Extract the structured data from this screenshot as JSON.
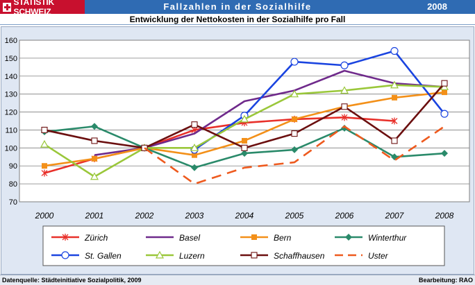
{
  "header": {
    "logo_text": "STATISTIK SCHWEIZ",
    "title": "Fallzahlen in der Sozialhilfe",
    "year": "2008",
    "banner_color": "#2f6bb3",
    "logo_color": "#c8102e"
  },
  "chart_data": {
    "type": "line",
    "title": "Entwicklung der Nettokosten in der Sozialhilfe pro Fall",
    "categories": [
      "2000",
      "2001",
      "2002",
      "2003",
      "2004",
      "2005",
      "2006",
      "2007",
      "2008"
    ],
    "ylim": [
      70,
      160
    ],
    "yticks": [
      70,
      80,
      90,
      100,
      110,
      120,
      130,
      140,
      150,
      160
    ],
    "grid": true,
    "legend_position": "bottom",
    "series": [
      {
        "name": "Zürich",
        "color": "#e8302a",
        "marker": "x",
        "dash": false,
        "values": [
          86,
          94,
          100,
          110,
          114,
          116,
          117,
          115,
          null
        ]
      },
      {
        "name": "Basel",
        "color": "#6f2a8b",
        "marker": "none",
        "dash": false,
        "values": [
          null,
          96,
          100,
          108,
          126,
          132,
          143,
          136,
          134
        ]
      },
      {
        "name": "Bern",
        "color": "#f39019",
        "marker": "square",
        "dash": false,
        "values": [
          90,
          94,
          100,
          96,
          104,
          116,
          123,
          128,
          131
        ]
      },
      {
        "name": "Winterthur",
        "color": "#2a8a6a",
        "marker": "diamond",
        "dash": false,
        "values": [
          109,
          112,
          100,
          89,
          97,
          99,
          111,
          95,
          97
        ]
      },
      {
        "name": "St. Gallen",
        "color": "#1a44e0",
        "marker": "circle",
        "dash": false,
        "values": [
          null,
          null,
          null,
          99,
          118,
          148,
          146,
          154,
          119
        ]
      },
      {
        "name": "Luzern",
        "color": "#9ac73a",
        "marker": "triangle",
        "dash": false,
        "values": [
          102,
          84,
          100,
          100,
          116,
          130,
          132,
          135,
          134
        ]
      },
      {
        "name": "Schaffhausen",
        "color": "#6b0f0f",
        "marker": "square-open",
        "dash": false,
        "values": [
          110,
          104,
          100,
          113,
          100,
          108,
          123,
          104,
          136
        ]
      },
      {
        "name": "Uster",
        "color": "#ee5a1e",
        "marker": "none",
        "dash": true,
        "values": [
          null,
          null,
          100,
          80,
          89,
          92,
          112,
          93,
          112
        ]
      }
    ]
  },
  "footer": {
    "source": "Datenquelle: Städteinitiative Sozialpolitik, 2009",
    "editor": "Bearbeitung: RAO"
  }
}
